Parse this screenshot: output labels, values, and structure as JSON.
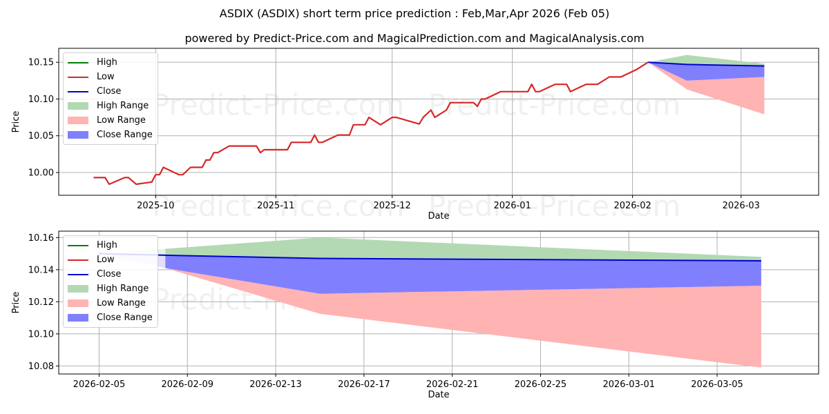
{
  "title": "ASDIX (ASDIX) short term price prediction : Feb,Mar,Apr 2026 (Feb 05)",
  "subtitle": "powered by Predict-Price.com and MagicalPrediction.com and MagicalAnalysis.com",
  "watermark": "Predict-Price.com",
  "colors": {
    "high": "#008000",
    "low": "#d62728",
    "close": "#0000cc",
    "high_range": "#b3d9b3",
    "low_range": "#ffb3b3",
    "close_range": "#8080ff"
  },
  "legend": [
    {
      "label": "High",
      "kind": "line",
      "color": "#008000"
    },
    {
      "label": "Low",
      "kind": "line",
      "color": "#d62728"
    },
    {
      "label": "Close",
      "kind": "line",
      "color": "#0000cc"
    },
    {
      "label": "High Range",
      "kind": "patch",
      "color": "#b3d9b3"
    },
    {
      "label": "Low Range",
      "kind": "patch",
      "color": "#ffb3b3"
    },
    {
      "label": "Close Range",
      "kind": "patch",
      "color": "#8080ff"
    }
  ],
  "chart_data": [
    {
      "type": "line",
      "title": "ASDIX (ASDIX) short term price prediction : Feb,Mar,Apr 2026 (Feb 05)",
      "xlabel": "Date",
      "ylabel": "Price",
      "ylim": [
        9.969,
        10.169
      ],
      "yticks": [
        "10.00",
        "10.05",
        "10.10",
        "10.15"
      ],
      "xticks": [
        "2025-10",
        "2025-11",
        "2025-12",
        "2026-01",
        "2026-02",
        "2026-03"
      ],
      "grid": true,
      "legend_position": "upper left",
      "history_low_series": {
        "name": "Low",
        "x": [
          "2025-09-15",
          "2025-09-18",
          "2025-09-19",
          "2025-09-23",
          "2025-09-24",
          "2025-09-26",
          "2025-09-30",
          "2025-10-01",
          "2025-10-02",
          "2025-10-03",
          "2025-10-07",
          "2025-10-08",
          "2025-10-10",
          "2025-10-13",
          "2025-10-14",
          "2025-10-15",
          "2025-10-16",
          "2025-10-17",
          "2025-10-20",
          "2025-10-27",
          "2025-10-28",
          "2025-10-29",
          "2025-11-04",
          "2025-11-05",
          "2025-11-10",
          "2025-11-11",
          "2025-11-12",
          "2025-11-13",
          "2025-11-17",
          "2025-11-20",
          "2025-11-21",
          "2025-11-24",
          "2025-11-25",
          "2025-11-28",
          "2025-12-01",
          "2025-12-02",
          "2025-12-08",
          "2025-12-09",
          "2025-12-11",
          "2025-12-12",
          "2025-12-15",
          "2025-12-16",
          "2025-12-22",
          "2025-12-23",
          "2025-12-24",
          "2025-12-25",
          "2025-12-29",
          "2026-01-05",
          "2026-01-06",
          "2026-01-07",
          "2026-01-08",
          "2026-01-12",
          "2026-01-15",
          "2026-01-16",
          "2026-01-20",
          "2026-01-23",
          "2026-01-26",
          "2026-01-29",
          "2026-02-02",
          "2026-02-05"
        ],
        "values": [
          9.993,
          9.993,
          9.984,
          9.993,
          9.993,
          9.984,
          9.987,
          9.997,
          9.997,
          10.007,
          9.997,
          9.997,
          10.007,
          10.007,
          10.017,
          10.017,
          10.027,
          10.027,
          10.036,
          10.036,
          10.027,
          10.031,
          10.031,
          10.041,
          10.041,
          10.051,
          10.041,
          10.041,
          10.051,
          10.051,
          10.065,
          10.065,
          10.075,
          10.065,
          10.075,
          10.075,
          10.066,
          10.075,
          10.085,
          10.075,
          10.085,
          10.095,
          10.095,
          10.09,
          10.1,
          10.1,
          10.11,
          10.11,
          10.12,
          10.11,
          10.11,
          10.12,
          10.12,
          10.11,
          10.12,
          10.12,
          10.13,
          10.13,
          10.14,
          10.15
        ]
      },
      "forecast": {
        "x": [
          "2026-02-05",
          "2026-02-15",
          "2026-03-07"
        ],
        "high_upper": [
          10.15,
          10.16,
          10.148
        ],
        "close": [
          10.15,
          10.147,
          10.145
        ],
        "close_lower": [
          10.15,
          10.125,
          10.13
        ],
        "low_lower": [
          10.15,
          10.113,
          10.079
        ]
      }
    },
    {
      "type": "area",
      "title": "",
      "xlabel": "Date",
      "ylabel": "Price",
      "ylim": [
        10.075,
        10.164
      ],
      "yticks": [
        "10.08",
        "10.10",
        "10.12",
        "10.14",
        "10.16"
      ],
      "xticks": [
        "2026-02-05",
        "2026-02-09",
        "2026-02-13",
        "2026-02-17",
        "2026-02-21",
        "2026-02-25",
        "2026-03-01",
        "2026-03-05"
      ],
      "grid": true,
      "legend_position": "upper left",
      "x": [
        "2026-02-05",
        "2026-02-08",
        "2026-02-15",
        "2026-03-07"
      ],
      "series": [
        {
          "name": "High Range upper",
          "values": [
            10.15,
            10.153,
            10.16,
            10.148
          ]
        },
        {
          "name": "Close",
          "values": [
            10.15,
            10.149,
            10.147,
            10.1455
          ]
        },
        {
          "name": "Close Range lower",
          "values": [
            10.15,
            10.141,
            10.125,
            10.13
          ]
        },
        {
          "name": "Low Range lower",
          "values": [
            10.15,
            10.141,
            10.1125,
            10.079
          ]
        }
      ]
    }
  ]
}
